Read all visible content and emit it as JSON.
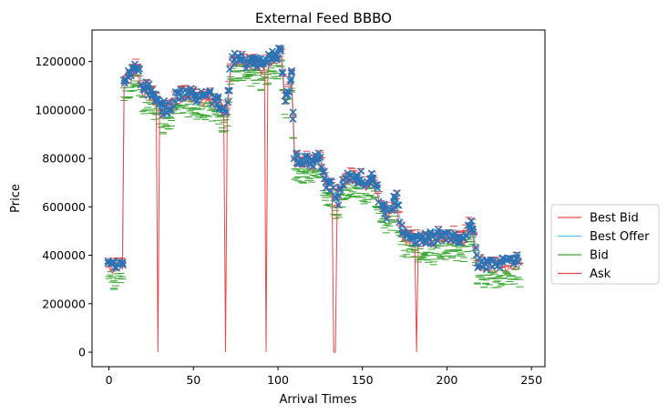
{
  "chart_data": {
    "type": "line",
    "title": "External Feed BBBO",
    "xlabel": "Arrival Times",
    "ylabel": "Price",
    "xlim": [
      -10,
      258
    ],
    "ylim": [
      -60000,
      1330000
    ],
    "xticks": [
      0,
      50,
      100,
      150,
      200,
      250
    ],
    "yticks": [
      0,
      200000,
      400000,
      600000,
      800000,
      1000000,
      1200000
    ],
    "xtick_labels": [
      "0",
      "50",
      "100",
      "150",
      "200",
      "250"
    ],
    "ytick_labels": [
      "0",
      "200000",
      "400000",
      "600000",
      "800000",
      "1000000",
      "1200000"
    ],
    "grid": false,
    "legend": {
      "placement": "outside-right",
      "entries": [
        {
          "label": "Best Bid",
          "color": "#e8474a"
        },
        {
          "label": "Best Offer",
          "color": "#4fc9e8"
        },
        {
          "label": "Bid",
          "color": "#3aa832"
        },
        {
          "label": "Ask",
          "color": "#e8474a"
        }
      ]
    },
    "colors": {
      "best_bid": "#e8474a",
      "best_offer": "#4fc9e8",
      "bid": "#3aa832",
      "ask": "#e8474a",
      "marker": "#2b73b5"
    },
    "anchors": [
      [
        0,
        350000
      ],
      [
        8,
        365000
      ],
      [
        9,
        1120000
      ],
      [
        12,
        1130000
      ],
      [
        15,
        1165000
      ],
      [
        17,
        1175000
      ],
      [
        20,
        1085000
      ],
      [
        25,
        1070000
      ],
      [
        29,
        1035000
      ],
      [
        32,
        1000000
      ],
      [
        36,
        1005000
      ],
      [
        40,
        1050000
      ],
      [
        45,
        1065000
      ],
      [
        50,
        1055000
      ],
      [
        55,
        1055000
      ],
      [
        60,
        1045000
      ],
      [
        65,
        1020000
      ],
      [
        68,
        990000
      ],
      [
        70,
        1010000
      ],
      [
        72,
        1185000
      ],
      [
        78,
        1200000
      ],
      [
        85,
        1195000
      ],
      [
        90,
        1185000
      ],
      [
        96,
        1205000
      ],
      [
        102,
        1225000
      ],
      [
        104,
        1060000
      ],
      [
        106,
        1065000
      ],
      [
        108,
        1130000
      ],
      [
        110,
        790000
      ],
      [
        115,
        790000
      ],
      [
        120,
        780000
      ],
      [
        125,
        820000
      ],
      [
        128,
        700000
      ],
      [
        132,
        690000
      ],
      [
        135,
        620000
      ],
      [
        138,
        700000
      ],
      [
        142,
        720000
      ],
      [
        148,
        715000
      ],
      [
        152,
        700000
      ],
      [
        156,
        720000
      ],
      [
        160,
        630000
      ],
      [
        165,
        560000
      ],
      [
        170,
        620000
      ],
      [
        174,
        470000
      ],
      [
        180,
        465000
      ],
      [
        185,
        455000
      ],
      [
        190,
        460000
      ],
      [
        195,
        470000
      ],
      [
        200,
        480000
      ],
      [
        205,
        470000
      ],
      [
        210,
        470000
      ],
      [
        213,
        510000
      ],
      [
        215,
        520000
      ],
      [
        218,
        360000
      ],
      [
        225,
        360000
      ],
      [
        230,
        360000
      ],
      [
        235,
        365000
      ],
      [
        240,
        380000
      ],
      [
        243,
        370000
      ]
    ],
    "dips": [
      {
        "x": 29,
        "from": 1035000,
        "to": 0
      },
      {
        "x": 69,
        "from": 985000,
        "to": 0
      },
      {
        "x": 93,
        "from": 1180000,
        "to": 0
      },
      {
        "x": 133,
        "from": 620000,
        "to": 0
      },
      {
        "x": 134,
        "from": 620000,
        "to": 0
      },
      {
        "x": 182,
        "from": 380000,
        "to": 0
      }
    ],
    "x_range": [
      0,
      243
    ]
  }
}
